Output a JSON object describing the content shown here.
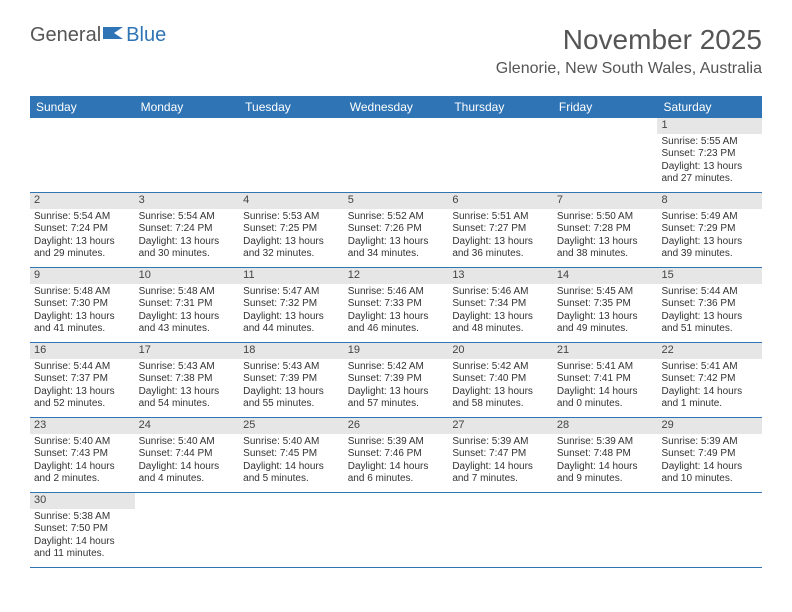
{
  "logo": {
    "part1": "General",
    "part2": "Blue"
  },
  "title": "November 2025",
  "location": "Glenorie, New South Wales, Australia",
  "colors": {
    "header_bg": "#2f74b5",
    "header_text": "#ffffff",
    "daynum_bg": "#e6e6e6",
    "row_border": "#2f74b5",
    "body_text": "#333333",
    "title_text": "#555555",
    "logo_blue": "#2f74b5"
  },
  "typography": {
    "title_fontsize": 28,
    "location_fontsize": 16,
    "dayhead_fontsize": 12,
    "daynum_fontsize": 11,
    "cell_fontsize": 10
  },
  "day_headers": [
    "Sunday",
    "Monday",
    "Tuesday",
    "Wednesday",
    "Thursday",
    "Friday",
    "Saturday"
  ],
  "weeks": [
    [
      null,
      null,
      null,
      null,
      null,
      null,
      {
        "n": "1",
        "sunrise": "Sunrise: 5:55 AM",
        "sunset": "Sunset: 7:23 PM",
        "daylight1": "Daylight: 13 hours",
        "daylight2": "and 27 minutes."
      }
    ],
    [
      {
        "n": "2",
        "sunrise": "Sunrise: 5:54 AM",
        "sunset": "Sunset: 7:24 PM",
        "daylight1": "Daylight: 13 hours",
        "daylight2": "and 29 minutes."
      },
      {
        "n": "3",
        "sunrise": "Sunrise: 5:54 AM",
        "sunset": "Sunset: 7:24 PM",
        "daylight1": "Daylight: 13 hours",
        "daylight2": "and 30 minutes."
      },
      {
        "n": "4",
        "sunrise": "Sunrise: 5:53 AM",
        "sunset": "Sunset: 7:25 PM",
        "daylight1": "Daylight: 13 hours",
        "daylight2": "and 32 minutes."
      },
      {
        "n": "5",
        "sunrise": "Sunrise: 5:52 AM",
        "sunset": "Sunset: 7:26 PM",
        "daylight1": "Daylight: 13 hours",
        "daylight2": "and 34 minutes."
      },
      {
        "n": "6",
        "sunrise": "Sunrise: 5:51 AM",
        "sunset": "Sunset: 7:27 PM",
        "daylight1": "Daylight: 13 hours",
        "daylight2": "and 36 minutes."
      },
      {
        "n": "7",
        "sunrise": "Sunrise: 5:50 AM",
        "sunset": "Sunset: 7:28 PM",
        "daylight1": "Daylight: 13 hours",
        "daylight2": "and 38 minutes."
      },
      {
        "n": "8",
        "sunrise": "Sunrise: 5:49 AM",
        "sunset": "Sunset: 7:29 PM",
        "daylight1": "Daylight: 13 hours",
        "daylight2": "and 39 minutes."
      }
    ],
    [
      {
        "n": "9",
        "sunrise": "Sunrise: 5:48 AM",
        "sunset": "Sunset: 7:30 PM",
        "daylight1": "Daylight: 13 hours",
        "daylight2": "and 41 minutes."
      },
      {
        "n": "10",
        "sunrise": "Sunrise: 5:48 AM",
        "sunset": "Sunset: 7:31 PM",
        "daylight1": "Daylight: 13 hours",
        "daylight2": "and 43 minutes."
      },
      {
        "n": "11",
        "sunrise": "Sunrise: 5:47 AM",
        "sunset": "Sunset: 7:32 PM",
        "daylight1": "Daylight: 13 hours",
        "daylight2": "and 44 minutes."
      },
      {
        "n": "12",
        "sunrise": "Sunrise: 5:46 AM",
        "sunset": "Sunset: 7:33 PM",
        "daylight1": "Daylight: 13 hours",
        "daylight2": "and 46 minutes."
      },
      {
        "n": "13",
        "sunrise": "Sunrise: 5:46 AM",
        "sunset": "Sunset: 7:34 PM",
        "daylight1": "Daylight: 13 hours",
        "daylight2": "and 48 minutes."
      },
      {
        "n": "14",
        "sunrise": "Sunrise: 5:45 AM",
        "sunset": "Sunset: 7:35 PM",
        "daylight1": "Daylight: 13 hours",
        "daylight2": "and 49 minutes."
      },
      {
        "n": "15",
        "sunrise": "Sunrise: 5:44 AM",
        "sunset": "Sunset: 7:36 PM",
        "daylight1": "Daylight: 13 hours",
        "daylight2": "and 51 minutes."
      }
    ],
    [
      {
        "n": "16",
        "sunrise": "Sunrise: 5:44 AM",
        "sunset": "Sunset: 7:37 PM",
        "daylight1": "Daylight: 13 hours",
        "daylight2": "and 52 minutes."
      },
      {
        "n": "17",
        "sunrise": "Sunrise: 5:43 AM",
        "sunset": "Sunset: 7:38 PM",
        "daylight1": "Daylight: 13 hours",
        "daylight2": "and 54 minutes."
      },
      {
        "n": "18",
        "sunrise": "Sunrise: 5:43 AM",
        "sunset": "Sunset: 7:39 PM",
        "daylight1": "Daylight: 13 hours",
        "daylight2": "and 55 minutes."
      },
      {
        "n": "19",
        "sunrise": "Sunrise: 5:42 AM",
        "sunset": "Sunset: 7:39 PM",
        "daylight1": "Daylight: 13 hours",
        "daylight2": "and 57 minutes."
      },
      {
        "n": "20",
        "sunrise": "Sunrise: 5:42 AM",
        "sunset": "Sunset: 7:40 PM",
        "daylight1": "Daylight: 13 hours",
        "daylight2": "and 58 minutes."
      },
      {
        "n": "21",
        "sunrise": "Sunrise: 5:41 AM",
        "sunset": "Sunset: 7:41 PM",
        "daylight1": "Daylight: 14 hours",
        "daylight2": "and 0 minutes."
      },
      {
        "n": "22",
        "sunrise": "Sunrise: 5:41 AM",
        "sunset": "Sunset: 7:42 PM",
        "daylight1": "Daylight: 14 hours",
        "daylight2": "and 1 minute."
      }
    ],
    [
      {
        "n": "23",
        "sunrise": "Sunrise: 5:40 AM",
        "sunset": "Sunset: 7:43 PM",
        "daylight1": "Daylight: 14 hours",
        "daylight2": "and 2 minutes."
      },
      {
        "n": "24",
        "sunrise": "Sunrise: 5:40 AM",
        "sunset": "Sunset: 7:44 PM",
        "daylight1": "Daylight: 14 hours",
        "daylight2": "and 4 minutes."
      },
      {
        "n": "25",
        "sunrise": "Sunrise: 5:40 AM",
        "sunset": "Sunset: 7:45 PM",
        "daylight1": "Daylight: 14 hours",
        "daylight2": "and 5 minutes."
      },
      {
        "n": "26",
        "sunrise": "Sunrise: 5:39 AM",
        "sunset": "Sunset: 7:46 PM",
        "daylight1": "Daylight: 14 hours",
        "daylight2": "and 6 minutes."
      },
      {
        "n": "27",
        "sunrise": "Sunrise: 5:39 AM",
        "sunset": "Sunset: 7:47 PM",
        "daylight1": "Daylight: 14 hours",
        "daylight2": "and 7 minutes."
      },
      {
        "n": "28",
        "sunrise": "Sunrise: 5:39 AM",
        "sunset": "Sunset: 7:48 PM",
        "daylight1": "Daylight: 14 hours",
        "daylight2": "and 9 minutes."
      },
      {
        "n": "29",
        "sunrise": "Sunrise: 5:39 AM",
        "sunset": "Sunset: 7:49 PM",
        "daylight1": "Daylight: 14 hours",
        "daylight2": "and 10 minutes."
      }
    ],
    [
      {
        "n": "30",
        "sunrise": "Sunrise: 5:38 AM",
        "sunset": "Sunset: 7:50 PM",
        "daylight1": "Daylight: 14 hours",
        "daylight2": "and 11 minutes."
      },
      null,
      null,
      null,
      null,
      null,
      null
    ]
  ]
}
